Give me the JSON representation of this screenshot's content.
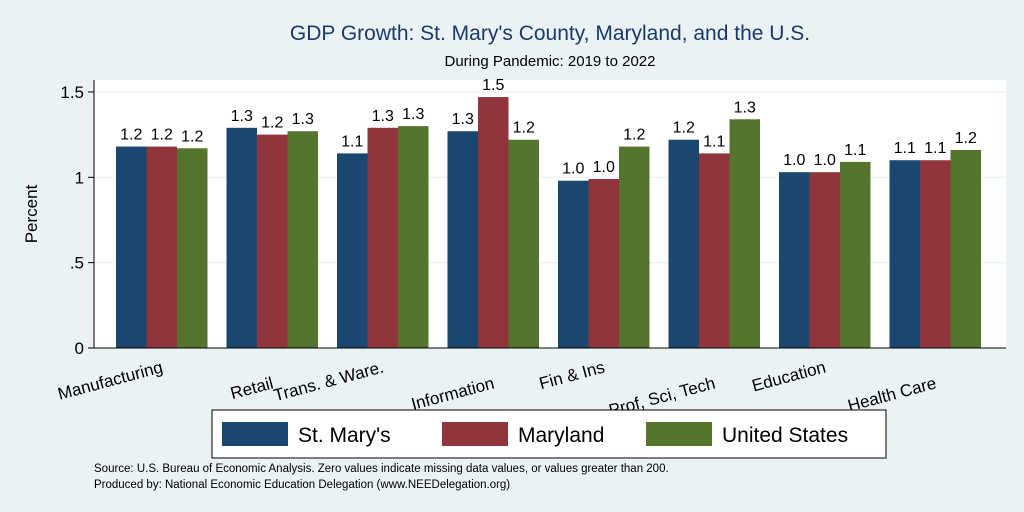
{
  "chart_data": {
    "type": "bar",
    "title": "GDP Growth: St. Mary's County, Maryland, and the U.S.",
    "subtitle": "During Pandemic: 2019 to 2022",
    "ylabel": "Percent",
    "xlabel": "",
    "ylim": [
      0,
      1.6
    ],
    "yticks": [
      0,
      0.5,
      1,
      1.5
    ],
    "ytick_labels": [
      "0",
      ".5",
      "1",
      "1.5"
    ],
    "grid": true,
    "legend_position": "bottom",
    "categories": [
      "Manufacturing",
      "Retail",
      "Trans. & Ware.",
      "Information",
      "Fin & Ins",
      "Prof, Sci, Tech",
      "Education",
      "Health Care"
    ],
    "series": [
      {
        "name": "St. Mary's",
        "color": "#1a476f",
        "values": [
          1.18,
          1.29,
          1.14,
          1.27,
          0.98,
          1.22,
          1.03,
          1.1
        ],
        "labels": [
          "1.2",
          "1.3",
          "1.1",
          "1.3",
          "1.0",
          "1.2",
          "1.0",
          "1.1"
        ]
      },
      {
        "name": "Maryland",
        "color": "#90353b",
        "values": [
          1.18,
          1.25,
          1.29,
          1.47,
          0.99,
          1.14,
          1.03,
          1.1
        ],
        "labels": [
          "1.2",
          "1.2",
          "1.3",
          "1.5",
          "1.0",
          "1.1",
          "1.0",
          "1.1"
        ]
      },
      {
        "name": "United States",
        "color": "#55752f",
        "values": [
          1.17,
          1.27,
          1.3,
          1.22,
          1.18,
          1.34,
          1.09,
          1.16
        ],
        "labels": [
          "1.2",
          "1.3",
          "1.3",
          "1.2",
          "1.2",
          "1.3",
          "1.1",
          "1.2"
        ]
      }
    ]
  },
  "notes": {
    "source": "Source: U.S. Bureau of Economic Analysis. Zero values indicate missing data values, or values greater than 200.",
    "produced": "Produced by: National Economic Education Delegation (www.NEEDelegation.org)"
  }
}
